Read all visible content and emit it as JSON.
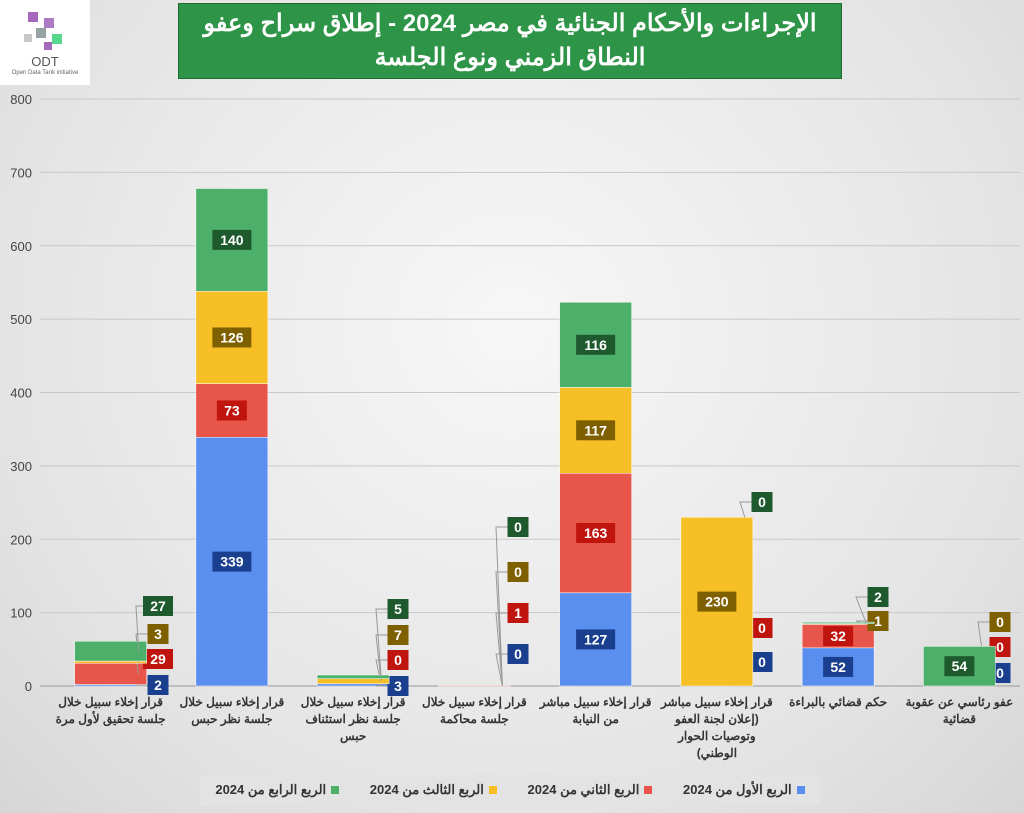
{
  "logo": {
    "text": "ODT",
    "subtitle": "Open Data Tank initiative"
  },
  "chart_data": {
    "type": "bar",
    "stacked": true,
    "title": "الإجراءات والأحكام الجنائية في مصر 2024 - إطلاق سراح وعفو",
    "subtitle": "النطاق الزمني ونوع الجلسة",
    "categories": [
      "قرار إخلاء سبيل خلال جلسة تحقيق لأول مرة",
      "قرار إخلاء سبيل خلال جلسة نظر حبس",
      "قرار إخلاء سبيل خلال جلسة نظر استئناف حبس",
      "قرار إخلاء سبيل خلال جلسة محاكمة",
      "قرار إخلاء سبيل مباشر من النيابة",
      "قرار إخلاء سبيل مباشر (إعلان لجنة العفو وتوصيات الحوار الوطني)",
      "حكم قضائي بالبراءة",
      "عفو رئاسي عن عقوبة قضائية"
    ],
    "series": [
      {
        "name": "الربع الأول من 2024",
        "color": "#5a8ff0",
        "label_color": "#1a3f8f",
        "values": [
          2,
          339,
          3,
          0,
          127,
          0,
          52,
          0
        ]
      },
      {
        "name": "الربع الثاني من 2024",
        "color": "#e8554a",
        "label_color": "#c0150f",
        "values": [
          29,
          73,
          0,
          1,
          163,
          0,
          32,
          0
        ]
      },
      {
        "name": "الربع الثالث من 2024",
        "color": "#f6bf26",
        "label_color": "#7f6000",
        "values": [
          3,
          126,
          7,
          0,
          117,
          230,
          1,
          0
        ]
      },
      {
        "name": "الربع الرابع من 2024",
        "color": "#4caf6a",
        "label_color": "#1e5a2e",
        "values": [
          27,
          140,
          5,
          0,
          116,
          0,
          2,
          54
        ]
      }
    ],
    "ylim": [
      0,
      800
    ],
    "yticks": [
      "0",
      "100",
      "200",
      "300",
      "400",
      "500",
      "600",
      "700",
      "800"
    ],
    "grid": true,
    "legend": "bottom"
  }
}
